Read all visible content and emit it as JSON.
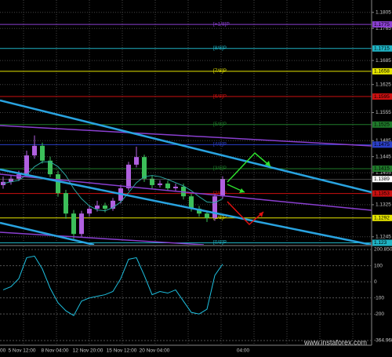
{
  "chart_data": [
    {
      "type": "candlestick",
      "open": [
        1.1374,
        1.1382,
        1.139,
        1.1401,
        1.1448,
        1.1472,
        1.1435,
        1.1401,
        1.1354,
        1.1303,
        1.1252,
        1.1303,
        1.1315,
        1.1323,
        1.1315,
        1.1335,
        1.1366,
        1.1425,
        1.1444,
        1.139,
        1.1374,
        1.1378,
        1.1366,
        1.137,
        1.1346,
        1.1315,
        1.1303,
        1.1292,
        1.1346
      ],
      "high": [
        1.1395,
        1.1398,
        1.141,
        1.146,
        1.1498,
        1.148,
        1.1445,
        1.141,
        1.1362,
        1.1312,
        1.131,
        1.1322,
        1.1335,
        1.133,
        1.1342,
        1.1375,
        1.1432,
        1.147,
        1.145,
        1.1398,
        1.1386,
        1.1385,
        1.1378,
        1.1378,
        1.1352,
        1.1322,
        1.131,
        1.1352,
        1.1396
      ],
      "low": [
        1.1365,
        1.1375,
        1.1384,
        1.1395,
        1.144,
        1.1428,
        1.1394,
        1.1345,
        1.129,
        1.124,
        1.1245,
        1.1296,
        1.1308,
        1.1306,
        1.131,
        1.1328,
        1.136,
        1.1418,
        1.1382,
        1.1366,
        1.1368,
        1.136,
        1.136,
        1.1338,
        1.1308,
        1.1295,
        1.1282,
        1.1285,
        1.134
      ],
      "close": [
        1.1382,
        1.139,
        1.1401,
        1.1448,
        1.1472,
        1.1435,
        1.1401,
        1.1354,
        1.1303,
        1.1252,
        1.1303,
        1.1315,
        1.1323,
        1.1315,
        1.1335,
        1.1366,
        1.1425,
        1.1444,
        1.139,
        1.1374,
        1.1378,
        1.1366,
        1.137,
        1.1346,
        1.1315,
        1.1303,
        1.1292,
        1.1346,
        1.1389
      ],
      "up_color": "#b060e0",
      "down_color": "#3cbf5a",
      "ma": {
        "color": "#2aa6a0",
        "values": [
          1.1378,
          1.1382,
          1.1386,
          1.14,
          1.142,
          1.1432,
          1.1432,
          1.142,
          1.1398,
          1.1365,
          1.134,
          1.1322,
          1.1312,
          1.131,
          1.1318,
          1.1332,
          1.1355,
          1.138,
          1.1395,
          1.1398,
          1.1395,
          1.1388,
          1.138,
          1.1372,
          1.136,
          1.1345,
          1.1332,
          1.133,
          1.134
        ]
      },
      "ylim": [
        1.1225,
        1.1832
      ],
      "yticks": [
        1.1805,
        1.1765,
        1.1685,
        1.1625,
        1.1555,
        1.1485,
        1.1445,
        1.1405,
        1.1325,
        1.1245
      ],
      "grid": true,
      "levels": [
        {
          "name": "[+1/8]P",
          "value": 1.1775,
          "color": "#8a3fd0"
        },
        {
          "name": "[8/8]P",
          "value": 1.1715,
          "color": "#1fb3c4"
        },
        {
          "name": "[7/8]P",
          "value": 1.1658,
          "color": "#e6e600"
        },
        {
          "name": "[6/8]P",
          "value": 1.1595,
          "color": "#cc1010"
        },
        {
          "name": "[5/8]P",
          "value": 1.1525,
          "color": "#1f7a2a"
        },
        {
          "name": "[4/8]P",
          "value": 1.1475,
          "color": "#2a3fc8"
        },
        {
          "name": "[3/8]P",
          "value": 1.1415,
          "color": "#1f7a2a"
        },
        {
          "name": "[2/8]P",
          "value": 1.1353,
          "color": "#cc1010"
        },
        {
          "name": "[1/8]P",
          "value": 1.1292,
          "color": "#e6e600"
        },
        {
          "name": "[0/8]P",
          "value": 1.123,
          "color": "#1fb3c4"
        }
      ],
      "current_price": 1.1389
    },
    {
      "type": "line",
      "values": [
        -50,
        -30,
        20,
        150,
        160,
        80,
        -40,
        -130,
        -180,
        -210,
        -120,
        -100,
        -90,
        -80,
        -60,
        20,
        140,
        150,
        40,
        -80,
        -60,
        -70,
        -50,
        -120,
        -190,
        -200,
        -170,
        40,
        110
      ],
      "color": "#1ec0e0",
      "ylim": [
        -364.9682,
        200.8502
      ],
      "yticks": [
        200.8502,
        100,
        0,
        -100,
        -200,
        -364.9682
      ],
      "grid": true,
      "x_labels": [
        "00",
        "5 Nov 12:00",
        "8 Nov 04:00",
        "12 Nov 20:00",
        "15 Nov 12:00",
        "20 Nov 04:00",
        "04:00"
      ]
    }
  ],
  "watermark": "www.instaforex.com"
}
